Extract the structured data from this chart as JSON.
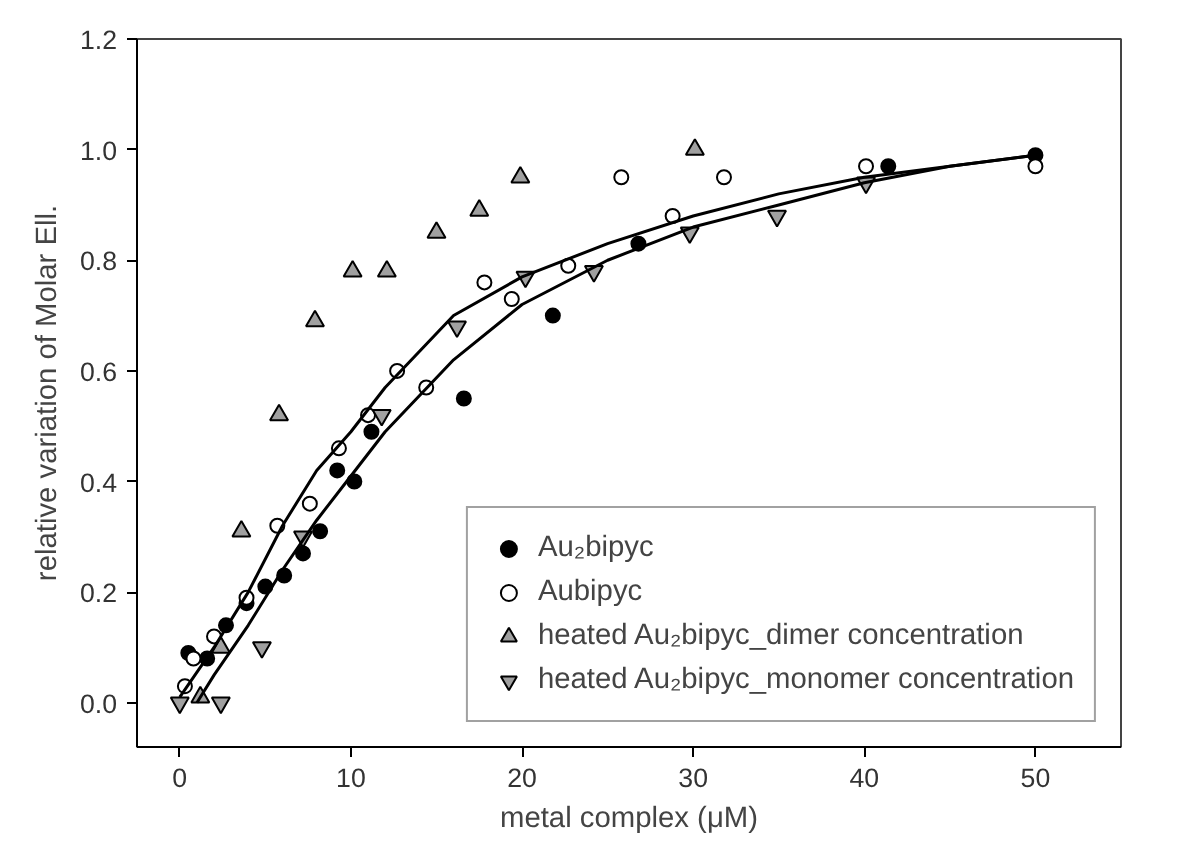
{
  "chart_data": {
    "type": "scatter",
    "xlabel": "metal complex (μM)",
    "ylabel": "relative variation of Molar Ell.",
    "xlim": [
      -2.5,
      55
    ],
    "ylim": [
      -0.08,
      1.2
    ],
    "xticks": [
      0,
      10,
      20,
      30,
      40,
      50
    ],
    "yticks": [
      {
        "value": 0,
        "label": "0.0"
      },
      {
        "value": 0.2,
        "label": "0.2"
      },
      {
        "value": 0.4,
        "label": "0.4"
      },
      {
        "value": 0.6,
        "label": "0.6"
      },
      {
        "value": 0.8,
        "label": "0.8"
      },
      {
        "value": 1.0,
        "label": "1.0"
      },
      {
        "value": 1.2,
        "label": "1.2"
      }
    ],
    "grid": false,
    "legend": "bottom right",
    "series": [
      {
        "name": "Au₂bipyc",
        "color": "#000000",
        "marker": "circle",
        "x": [
          0.5,
          1.6,
          2.7,
          3.9,
          5.0,
          6.1,
          7.2,
          8.2,
          9.2,
          10.2,
          11.2,
          16.6,
          21.8,
          26.8,
          41.4,
          50
        ],
        "values": [
          0.09,
          0.08,
          0.14,
          0.18,
          0.21,
          0.23,
          0.27,
          0.31,
          0.42,
          0.4,
          0.49,
          0.55,
          0.7,
          0.83,
          0.97,
          0.99
        ]
      },
      {
        "name": "Aubipyc",
        "color": "#ffffff",
        "marker": "circle",
        "x": [
          0.3,
          0.8,
          2.0,
          3.9,
          5.7,
          7.6,
          9.3,
          11.0,
          12.7,
          14.4,
          17.8,
          19.4,
          22.7,
          25.8,
          28.8,
          31.8,
          40.1,
          50
        ],
        "values": [
          0.03,
          0.08,
          0.12,
          0.19,
          0.32,
          0.36,
          0.46,
          0.52,
          0.6,
          0.57,
          0.76,
          0.73,
          0.79,
          0.95,
          0.88,
          0.95,
          0.97,
          0.97
        ]
      },
      {
        "name": "heated Au₂bipyc_dimer concentration",
        "color": "#a0a0a0",
        "marker": "triangle",
        "x": [
          1.2,
          2.4,
          3.6,
          5.8,
          7.9,
          10.1,
          12.1,
          15.0,
          17.5,
          19.9,
          30.1
        ],
        "values": [
          0.01,
          0.1,
          0.31,
          0.52,
          0.69,
          0.78,
          0.78,
          0.85,
          0.89,
          0.95,
          1.0
        ]
      },
      {
        "name": "heated Au₂bipyc_monomer concentration",
        "color": "#a0a0a0",
        "marker": "triangle",
        "x": [
          0,
          2.4,
          4.8,
          7.2,
          11.8,
          16.2,
          20.2,
          24.2,
          29.8,
          34.9,
          40.1
        ],
        "values": [
          0.0,
          0.0,
          0.1,
          0.3,
          0.52,
          0.68,
          0.77,
          0.78,
          0.85,
          0.88,
          0.94
        ]
      },
      {
        "type": "line",
        "color": "#000000",
        "x": [
          0,
          2,
          4,
          6,
          8,
          10,
          12,
          16,
          20,
          25,
          30,
          35,
          40,
          45,
          50
        ],
        "values": [
          0.01,
          0.1,
          0.2,
          0.32,
          0.42,
          0.49,
          0.57,
          0.7,
          0.77,
          0.83,
          0.88,
          0.92,
          0.95,
          0.97,
          0.99
        ]
      },
      {
        "type": "line",
        "color": "#000000",
        "x": [
          1,
          2,
          4,
          6,
          8,
          10,
          12,
          16,
          20,
          25,
          30,
          35,
          40,
          45,
          50
        ],
        "values": [
          0.0,
          0.05,
          0.14,
          0.24,
          0.33,
          0.41,
          0.49,
          0.62,
          0.72,
          0.8,
          0.86,
          0.9,
          0.94,
          0.97,
          0.99
        ]
      }
    ]
  }
}
